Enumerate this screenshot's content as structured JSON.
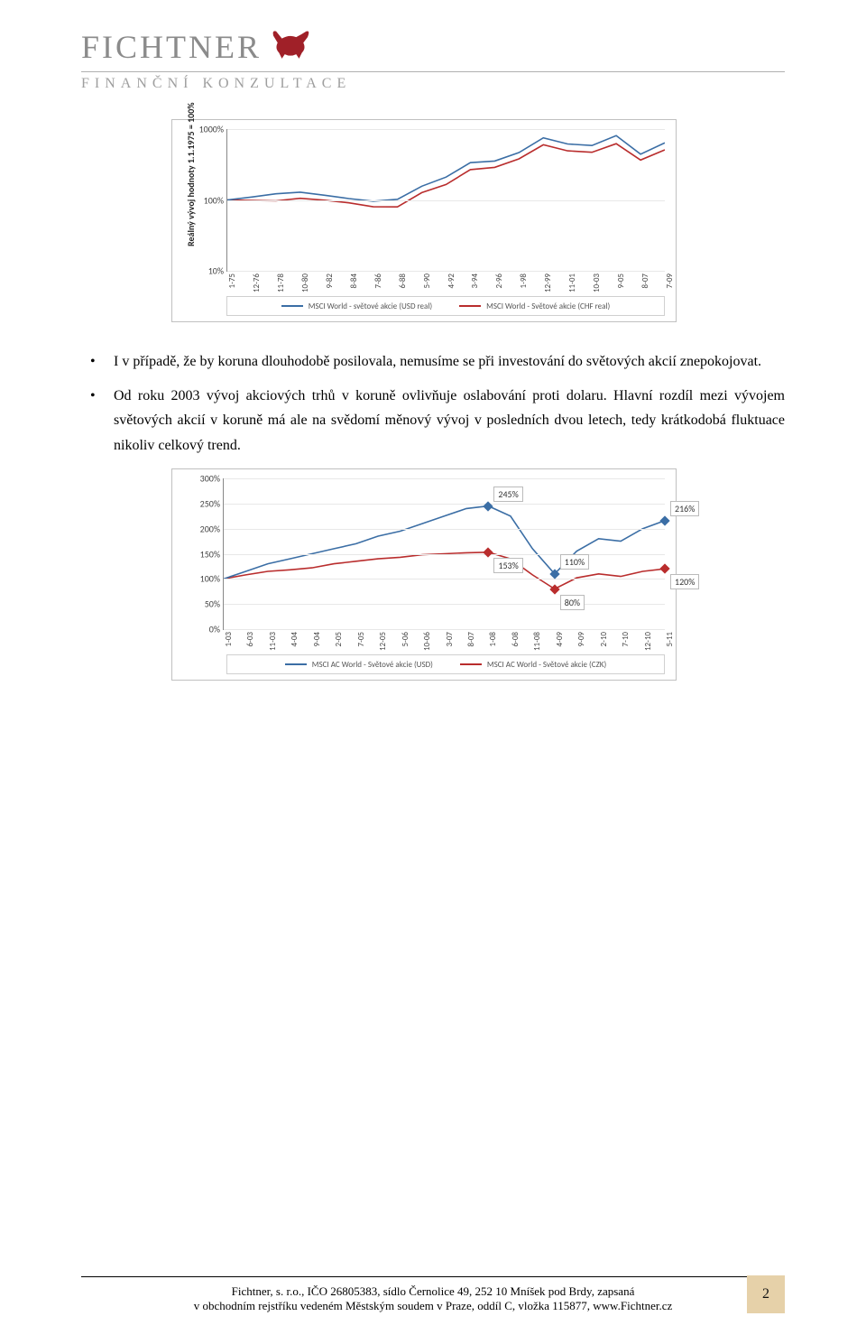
{
  "header": {
    "brand": "FICHTNER",
    "subtitle": "FINANČNÍ KONZULTACE",
    "bull_color": "#a02028"
  },
  "body": {
    "bullet1": "I v případě, že by koruna dlouhodobě posilovala, nemusíme se při investování do světových akcií znepokojovat.",
    "bullet2": "Od roku 2003 vývoj akciových trhů v koruně ovlivňuje oslabování proti dolaru. Hlavní rozdíl mezi vývojem světových akcií v koruně má ale na svědomí měnový vývoj v posledních dvou letech, tedy krátkodobá fluktuace nikoliv celkový trend."
  },
  "chart1": {
    "type": "line",
    "y_axis_title": "Reálný vývoj hodnoty 1.1.1975 = 100%",
    "y_scale": "log",
    "y_ticks": [
      "10%",
      "100%",
      "1000%"
    ],
    "x_ticks": [
      "1-75",
      "12-76",
      "11-78",
      "10-80",
      "9-82",
      "8-84",
      "7-86",
      "6-88",
      "5-90",
      "4-92",
      "3-94",
      "2-96",
      "1-98",
      "12-99",
      "11-01",
      "10-03",
      "9-05",
      "8-07",
      "7-09"
    ],
    "colors": {
      "s1": "#3b6ea5",
      "s2": "#b92d2d",
      "grid": "#e8e8e8",
      "axis": "#888888",
      "bg": "#ffffff"
    },
    "legend": {
      "s1": "MSCI World - světové akcie (USD real)",
      "s2": "MSCI World - Světové akcie (CHF real)"
    },
    "series1_y": [
      100,
      95,
      110,
      108,
      120,
      130,
      128,
      130,
      115,
      118,
      110,
      100,
      98,
      95,
      92,
      105,
      125,
      160,
      180,
      210,
      260,
      340,
      300,
      350,
      370,
      430,
      540,
      700,
      820,
      700,
      550,
      520,
      620,
      730,
      830,
      700,
      410,
      560,
      640
    ],
    "series2_y": [
      100,
      92,
      98,
      100,
      95,
      105,
      102,
      112,
      100,
      98,
      95,
      88,
      84,
      78,
      72,
      82,
      100,
      130,
      145,
      165,
      210,
      270,
      250,
      285,
      300,
      350,
      440,
      570,
      640,
      560,
      440,
      430,
      490,
      560,
      640,
      570,
      340,
      450,
      510
    ]
  },
  "chart2": {
    "type": "line",
    "y_scale": "linear",
    "y_ticks": [
      "0%",
      "50%",
      "100%",
      "150%",
      "200%",
      "250%",
      "300%"
    ],
    "x_ticks": [
      "1-03",
      "6-03",
      "11-03",
      "4-04",
      "9-04",
      "2-05",
      "7-05",
      "12-05",
      "5-06",
      "10-06",
      "3-07",
      "8-07",
      "1-08",
      "6-08",
      "11-08",
      "4-09",
      "9-09",
      "2-10",
      "7-10",
      "12-10",
      "5-11"
    ],
    "colors": {
      "s1": "#3b6ea5",
      "s2": "#b92d2d",
      "grid": "#e8e8e8",
      "axis": "#888888",
      "bg": "#ffffff"
    },
    "legend": {
      "s1": "MSCI AC World - Světové akcie (USD)",
      "s2": "MSCI AC World - Světové akcie (CZK)"
    },
    "callouts": {
      "c1": {
        "label": "245%",
        "series": 1,
        "xi": 12
      },
      "c2": {
        "label": "153%",
        "series": 2,
        "xi": 12
      },
      "c3": {
        "label": "110%",
        "series": 1,
        "xi": 15
      },
      "c4": {
        "label": "80%",
        "series": 2,
        "xi": 15
      },
      "c5": {
        "label": "216%",
        "series": 1,
        "xi": 20
      },
      "c6": {
        "label": "120%",
        "series": 2,
        "xi": 20
      }
    },
    "series1_y": [
      100,
      115,
      130,
      140,
      150,
      160,
      170,
      185,
      195,
      210,
      225,
      240,
      245,
      225,
      160,
      110,
      155,
      180,
      175,
      200,
      216
    ],
    "series2_y": [
      100,
      108,
      115,
      118,
      122,
      130,
      135,
      140,
      143,
      148,
      150,
      152,
      153,
      140,
      108,
      80,
      102,
      110,
      105,
      115,
      120
    ]
  },
  "footer": {
    "line1": "Fichtner, s. r.o., IČO 26805383, sídlo Černolice 49, 252 10 Mníšek pod Brdy, zapsaná",
    "line2": "v obchodním rejstříku vedeném Městským soudem v Praze, oddíl C, vložka 115877, www.Fichtner.cz",
    "page_number": "2",
    "badge_bg": "#e6d1a9"
  }
}
